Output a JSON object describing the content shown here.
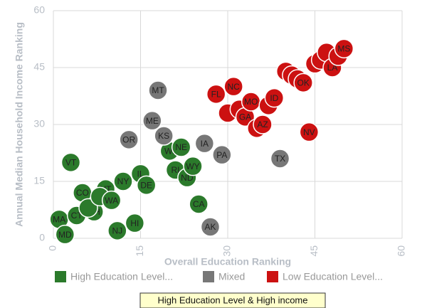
{
  "chart_data": {
    "type": "scatter",
    "x_label": "Overall Education Ranking",
    "y_label": "Annual Median Household Income Ranking",
    "xlim": [
      0,
      60
    ],
    "ylim": [
      0,
      60
    ],
    "xticks": [
      0,
      15,
      30,
      45,
      60
    ],
    "yticks": [
      0,
      15,
      30,
      45,
      60
    ],
    "grid": true,
    "tooltip": "High Education Level & High income",
    "series": [
      {
        "name": "High Education Level...",
        "color": "#2b7a2b",
        "x": [
          3,
          1,
          2,
          4,
          5,
          7,
          6,
          9,
          8,
          10,
          11,
          12,
          14,
          15,
          16,
          20,
          22,
          21,
          23,
          24,
          25
        ],
        "values": [
          20,
          5,
          1,
          6,
          12,
          7,
          8,
          13,
          11,
          10,
          2,
          15,
          4,
          17,
          14,
          23,
          24,
          18,
          16,
          19,
          9
        ],
        "labels": [
          "VT",
          "MA",
          "MD",
          "CT",
          "CO",
          "NH",
          null,
          "UT",
          null,
          "WA",
          "NJ",
          "NY",
          "HI",
          "IL",
          "DE",
          "WI",
          "NE",
          "RI",
          "ND",
          "WY",
          "CA"
        ]
      },
      {
        "name": "Mixed",
        "color": "#777777",
        "x": [
          18,
          17,
          19,
          13,
          26,
          29,
          27,
          39
        ],
        "values": [
          39,
          31,
          27,
          26,
          25,
          22,
          3,
          21
        ],
        "labels": [
          "MT",
          "ME",
          "KS",
          "OR",
          "IA",
          "PA",
          "AK",
          "TX"
        ]
      },
      {
        "name": "Low Education Level...",
        "color": "#cc1111",
        "x": [
          28,
          31,
          30,
          32,
          33,
          34,
          35,
          36,
          37,
          38,
          40,
          41,
          42,
          43,
          44,
          45,
          46,
          47,
          48,
          49,
          50
        ],
        "values": [
          38,
          40,
          33,
          34,
          32,
          36,
          29,
          30,
          35,
          37,
          44,
          43,
          42,
          41,
          28,
          46,
          47,
          49,
          45,
          48,
          50
        ],
        "labels": [
          "FL",
          "NC",
          null,
          null,
          "GA",
          "MO",
          null,
          "AZ",
          null,
          "ID",
          null,
          null,
          null,
          "OK",
          "NV",
          null,
          null,
          null,
          "LA",
          null,
          "MS"
        ]
      }
    ]
  }
}
